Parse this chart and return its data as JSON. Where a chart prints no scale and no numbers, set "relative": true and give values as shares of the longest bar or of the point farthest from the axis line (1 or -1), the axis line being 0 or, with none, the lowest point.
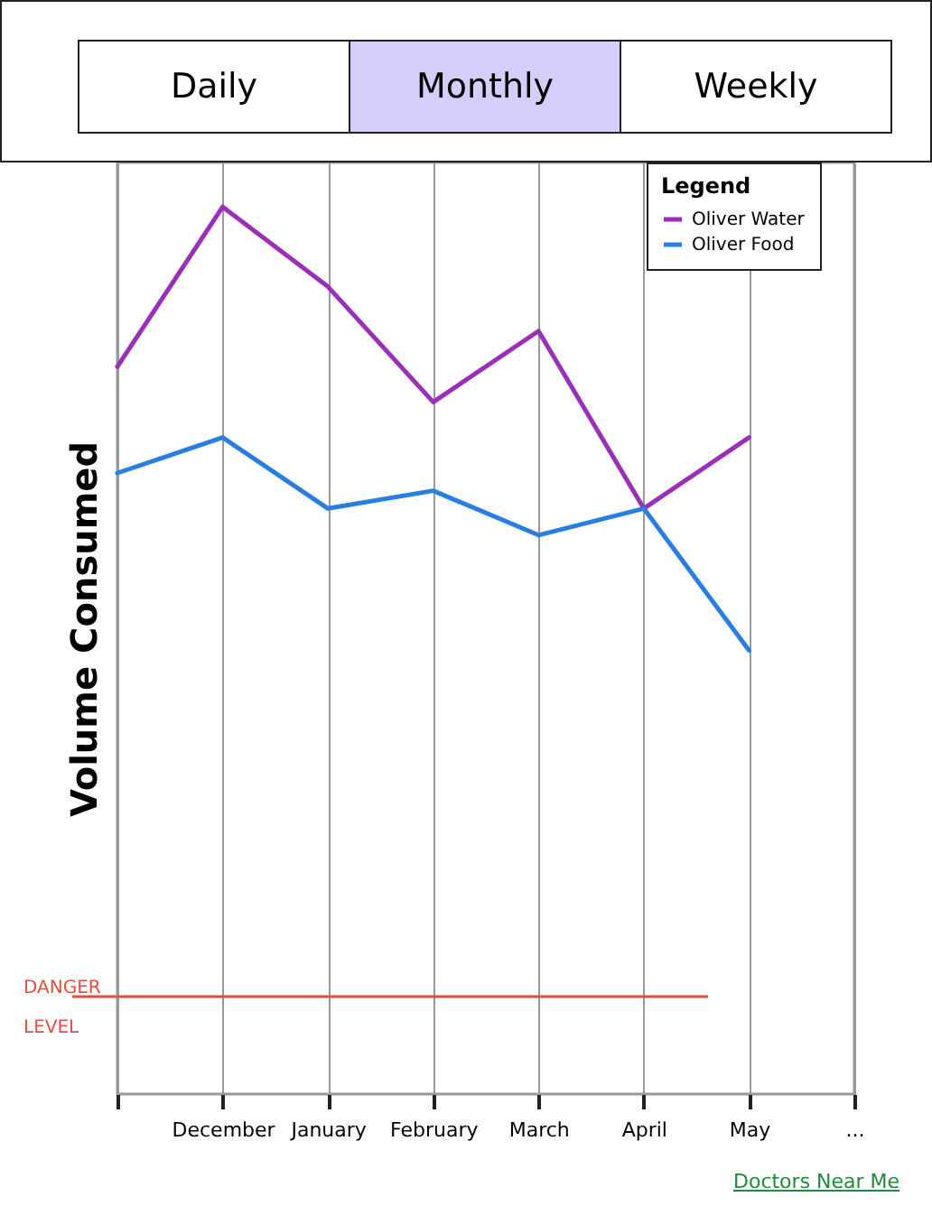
{
  "chart_data": {
    "type": "line",
    "relative": true,
    "annotations": [
      "Daily",
      "Monthly",
      "Weekly",
      "Doctors Near Me"
    ],
    "ylabel": "Volume Consumed",
    "legend_title": "Legend",
    "legend": "top right",
    "grid": "x",
    "categories": [
      null,
      "December",
      "January",
      "February",
      "March",
      "April",
      "May",
      "..."
    ],
    "series": [
      {
        "name": "Oliver Water",
        "color": "#9b30b8",
        "values": [
          0.82,
          1.0,
          0.91,
          0.78,
          0.86,
          0.66,
          0.74,
          null
        ]
      },
      {
        "name": "Oliver Food",
        "color": "#2a7de1",
        "values": [
          0.7,
          0.74,
          0.66,
          0.68,
          0.63,
          0.66,
          0.5,
          null
        ]
      }
    ],
    "ref_lines": [
      {
        "axis": "y",
        "value": 0.11,
        "label": "DANGER LEVEL",
        "color": "#e05040"
      }
    ]
  }
}
